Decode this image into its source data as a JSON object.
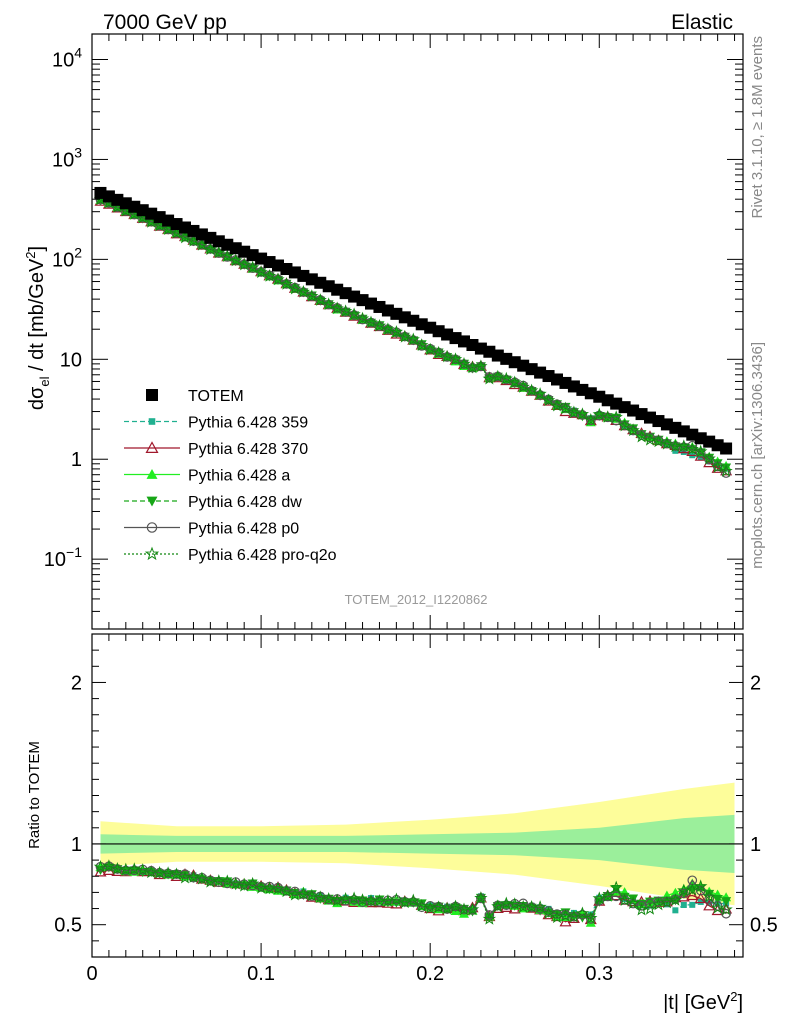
{
  "header": {
    "left": "7000 GeV pp",
    "right": "Elastic"
  },
  "side_text": {
    "top": "Rivet 3.1.10, ≥ 1.8M events",
    "bottom": "mcplots.cern.ch [arXiv:1306.3436]"
  },
  "watermark": "TOTEM_2012_I1220862",
  "axes": {
    "ylabel_main_pre": "dσ",
    "ylabel_main_sub": "el",
    "ylabel_main_mid": " / dt [mb/GeV",
    "ylabel_main_sup": "2",
    "ylabel_main_post": "]",
    "ylabel_ratio": "Ratio to TOTEM",
    "xlabel_pre": "|t| [GeV",
    "xlabel_sup": "2",
    "xlabel_post": "]"
  },
  "legend": [
    {
      "label": "TOTEM",
      "color": "#000000",
      "marker": "filled-square",
      "line": "none"
    },
    {
      "label": "Pythia 6.428 359",
      "color": "#20b090",
      "marker": "small-square",
      "line": "dashed"
    },
    {
      "label": "Pythia 6.428 370",
      "color": "#a0182c",
      "marker": "open-triangle",
      "line": "solid"
    },
    {
      "label": "Pythia 6.428 a",
      "color": "#22ee22",
      "marker": "filled-triangle",
      "line": "solid"
    },
    {
      "label": "Pythia 6.428 dw",
      "color": "#17a617",
      "marker": "filled-triangle-down",
      "line": "dashed"
    },
    {
      "label": "Pythia 6.428 p0",
      "color": "#555555",
      "marker": "open-circle",
      "line": "solid"
    },
    {
      "label": "Pythia 6.428 pro-q2o",
      "color": "#118811",
      "marker": "open-star",
      "line": "dotted"
    }
  ],
  "chart_data": {
    "type": "scatter",
    "x_range": [
      0,
      0.385
    ],
    "main": {
      "y_scale": "log",
      "y_range": [
        0.02,
        18000
      ],
      "y_ticks": [
        {
          "value": 0.1,
          "base": "10",
          "exp": "−1"
        },
        {
          "value": 1,
          "label": "1"
        },
        {
          "value": 10,
          "label": "10"
        },
        {
          "value": 100,
          "base": "10",
          "exp": "2"
        },
        {
          "value": 1000,
          "base": "10",
          "exp": "3"
        },
        {
          "value": 10000,
          "base": "10",
          "exp": "4"
        }
      ]
    },
    "ratio": {
      "y_range": [
        0.3,
        2.3
      ],
      "y_ticks": [
        0.5,
        1,
        2
      ],
      "y_tick_labels": [
        "0.5",
        "1",
        "2"
      ]
    },
    "x_ticks": [
      0,
      0.1,
      0.2,
      0.3
    ],
    "x_tick_labels": [
      "0",
      "0.1",
      "0.2",
      "0.3"
    ],
    "data": {
      "name": "TOTEM",
      "x": [
        0.005,
        0.01,
        0.015,
        0.02,
        0.025,
        0.03,
        0.035,
        0.04,
        0.045,
        0.05,
        0.055,
        0.06,
        0.065,
        0.07,
        0.075,
        0.08,
        0.085,
        0.09,
        0.095,
        0.1,
        0.105,
        0.11,
        0.115,
        0.12,
        0.125,
        0.13,
        0.135,
        0.14,
        0.145,
        0.15,
        0.155,
        0.16,
        0.165,
        0.17,
        0.175,
        0.18,
        0.185,
        0.19,
        0.195,
        0.2,
        0.205,
        0.21,
        0.215,
        0.22,
        0.225,
        0.23,
        0.235,
        0.24,
        0.245,
        0.25,
        0.255,
        0.26,
        0.265,
        0.27,
        0.275,
        0.28,
        0.285,
        0.29,
        0.295,
        0.3,
        0.305,
        0.31,
        0.315,
        0.32,
        0.325,
        0.33,
        0.335,
        0.34,
        0.345,
        0.35,
        0.355,
        0.36,
        0.365,
        0.37,
        0.375
      ],
      "y": [
        462.2,
        426.8,
        394.1,
        364.0,
        336.1,
        310.4,
        286.6,
        264.7,
        244.4,
        225.7,
        208.4,
        192.5,
        177.7,
        164.1,
        151.6,
        140.0,
        129.2,
        119.3,
        110.2,
        101.8,
        94.0,
        86.8,
        80.1,
        74.0,
        68.3,
        63.1,
        58.3,
        53.8,
        49.7,
        45.9,
        42.4,
        39.1,
        36.1,
        33.4,
        30.8,
        28.5,
        26.3,
        24.3,
        22.4,
        20.7,
        19.1,
        17.7,
        16.3,
        15.1,
        13.9,
        12.8,
        11.9,
        10.9,
        10.1,
        9.35,
        8.63,
        7.97,
        7.36,
        6.8,
        6.28,
        5.8,
        5.35,
        4.94,
        4.57,
        4.22,
        3.89,
        3.6,
        3.32,
        3.07,
        2.83,
        2.61,
        2.41,
        2.23,
        2.06,
        1.9,
        1.76,
        1.62,
        1.5,
        1.38,
        1.28
      ]
    },
    "ratio_bands": {
      "x": [
        0.005,
        0.05,
        0.1,
        0.15,
        0.2,
        0.25,
        0.3,
        0.35,
        0.38
      ],
      "inner_up": [
        1.06,
        1.05,
        1.05,
        1.05,
        1.06,
        1.07,
        1.1,
        1.16,
        1.18
      ],
      "inner_down": [
        0.94,
        0.95,
        0.95,
        0.95,
        0.94,
        0.93,
        0.9,
        0.84,
        0.82
      ],
      "outer_up": [
        1.14,
        1.11,
        1.11,
        1.12,
        1.15,
        1.19,
        1.26,
        1.34,
        1.38
      ],
      "outer_down": [
        0.86,
        0.89,
        0.89,
        0.88,
        0.85,
        0.81,
        0.74,
        0.66,
        0.62
      ],
      "inner_color": "#9bef9b",
      "outer_color": "#fdfd9a"
    },
    "mc_x": [
      0.005,
      0.01,
      0.015,
      0.02,
      0.025,
      0.03,
      0.035,
      0.04,
      0.045,
      0.05,
      0.055,
      0.06,
      0.065,
      0.07,
      0.075,
      0.08,
      0.085,
      0.09,
      0.095,
      0.1,
      0.105,
      0.11,
      0.115,
      0.12,
      0.125,
      0.13,
      0.135,
      0.14,
      0.145,
      0.15,
      0.155,
      0.16,
      0.165,
      0.17,
      0.175,
      0.18,
      0.185,
      0.19,
      0.195,
      0.2,
      0.205,
      0.21,
      0.215,
      0.22,
      0.225,
      0.23,
      0.235,
      0.24,
      0.245,
      0.25,
      0.255,
      0.26,
      0.265,
      0.27,
      0.275,
      0.28,
      0.285,
      0.29,
      0.295,
      0.3,
      0.305,
      0.31,
      0.315,
      0.32,
      0.325,
      0.33,
      0.335,
      0.34,
      0.345,
      0.35,
      0.355,
      0.36,
      0.365,
      0.37,
      0.375
    ],
    "series": [
      {
        "name": "Pythia 6.428 359",
        "ratio": [
          0.846,
          0.857,
          0.845,
          0.832,
          0.842,
          0.826,
          0.836,
          0.816,
          0.818,
          0.812,
          0.798,
          0.806,
          0.784,
          0.772,
          0.776,
          0.754,
          0.756,
          0.747,
          0.758,
          0.738,
          0.73,
          0.724,
          0.712,
          0.696,
          0.706,
          0.684,
          0.682,
          0.665,
          0.646,
          0.667,
          0.652,
          0.648,
          0.665,
          0.646,
          0.642,
          0.636,
          0.647,
          0.643,
          0.631,
          0.621,
          0.613,
          0.612,
          0.6,
          0.587,
          0.594,
          0.676,
          0.551,
          0.61,
          0.618,
          0.625,
          0.605,
          0.617,
          0.608,
          0.598,
          0.571,
          0.567,
          0.573,
          0.557,
          0.563,
          0.667,
          0.665,
          0.705,
          0.659,
          0.645,
          0.62,
          0.618,
          0.649,
          0.626,
          0.589,
          0.622,
          0.623,
          0.641,
          0.635,
          0.632,
          0.631
        ]
      },
      {
        "name": "Pythia 6.428 370",
        "ratio": [
          0.827,
          0.836,
          0.83,
          0.828,
          0.837,
          0.829,
          0.83,
          0.811,
          0.815,
          0.799,
          0.812,
          0.806,
          0.783,
          0.775,
          0.763,
          0.762,
          0.753,
          0.752,
          0.744,
          0.739,
          0.729,
          0.731,
          0.714,
          0.694,
          0.69,
          0.67,
          0.666,
          0.655,
          0.652,
          0.647,
          0.638,
          0.649,
          0.637,
          0.637,
          0.633,
          0.629,
          0.645,
          0.641,
          0.62,
          0.6,
          0.586,
          0.604,
          0.601,
          0.587,
          0.605,
          0.666,
          0.551,
          0.601,
          0.607,
          0.598,
          0.609,
          0.603,
          0.592,
          0.562,
          0.551,
          0.518,
          0.539,
          0.566,
          0.532,
          0.646,
          0.68,
          0.68,
          0.652,
          0.643,
          0.641,
          0.646,
          0.639,
          0.642,
          0.667,
          0.672,
          0.681,
          0.662,
          0.617,
          0.588,
          0.598
        ]
      },
      {
        "name": "Pythia 6.428 a",
        "ratio": [
          0.858,
          0.86,
          0.85,
          0.831,
          0.828,
          0.842,
          0.834,
          0.823,
          0.81,
          0.814,
          0.799,
          0.799,
          0.796,
          0.774,
          0.774,
          0.754,
          0.754,
          0.758,
          0.734,
          0.73,
          0.719,
          0.71,
          0.706,
          0.689,
          0.705,
          0.682,
          0.665,
          0.649,
          0.634,
          0.656,
          0.642,
          0.634,
          0.655,
          0.648,
          0.642,
          0.644,
          0.645,
          0.636,
          0.615,
          0.61,
          0.596,
          0.605,
          0.585,
          0.568,
          0.587,
          0.665,
          0.551,
          0.625,
          0.626,
          0.617,
          0.601,
          0.609,
          0.591,
          0.583,
          0.551,
          0.547,
          0.562,
          0.57,
          0.512,
          0.658,
          0.672,
          0.705,
          0.702,
          0.655,
          0.629,
          0.636,
          0.641,
          0.681,
          0.698,
          0.721,
          0.755,
          0.732,
          0.705,
          0.687,
          0.67
        ]
      },
      {
        "name": "Pythia 6.428 dw",
        "ratio": [
          0.839,
          0.855,
          0.844,
          0.833,
          0.836,
          0.826,
          0.826,
          0.817,
          0.811,
          0.814,
          0.807,
          0.789,
          0.782,
          0.77,
          0.77,
          0.768,
          0.744,
          0.741,
          0.755,
          0.731,
          0.719,
          0.717,
          0.712,
          0.697,
          0.684,
          0.689,
          0.66,
          0.661,
          0.647,
          0.652,
          0.648,
          0.65,
          0.642,
          0.656,
          0.638,
          0.637,
          0.638,
          0.636,
          0.632,
          0.604,
          0.612,
          0.596,
          0.608,
          0.598,
          0.582,
          0.666,
          0.545,
          0.615,
          0.62,
          0.617,
          0.616,
          0.605,
          0.587,
          0.575,
          0.566,
          0.576,
          0.554,
          0.544,
          0.545,
          0.642,
          0.678,
          0.721,
          0.672,
          0.662,
          0.63,
          0.643,
          0.649,
          0.649,
          0.652,
          0.693,
          0.718,
          0.726,
          0.691,
          0.659,
          0.646
        ]
      },
      {
        "name": "Pythia 6.428 p0",
        "ratio": [
          0.859,
          0.862,
          0.845,
          0.836,
          0.837,
          0.842,
          0.834,
          0.822,
          0.818,
          0.813,
          0.813,
          0.791,
          0.791,
          0.775,
          0.763,
          0.756,
          0.764,
          0.751,
          0.743,
          0.736,
          0.736,
          0.73,
          0.71,
          0.706,
          0.689,
          0.678,
          0.675,
          0.656,
          0.659,
          0.649,
          0.654,
          0.639,
          0.646,
          0.642,
          0.651,
          0.655,
          0.642,
          0.641,
          0.608,
          0.617,
          0.612,
          0.597,
          0.613,
          0.593,
          0.592,
          0.663,
          0.56,
          0.62,
          0.621,
          0.63,
          0.632,
          0.609,
          0.597,
          0.585,
          0.566,
          0.563,
          0.55,
          0.562,
          0.536,
          0.649,
          0.675,
          0.676,
          0.654,
          0.631,
          0.617,
          0.632,
          0.643,
          0.643,
          0.658,
          0.694,
          0.775,
          0.711,
          0.659,
          0.616,
          0.568
        ]
      },
      {
        "name": "Pythia 6.428 pro-q2o",
        "ratio": [
          0.858,
          0.862,
          0.845,
          0.841,
          0.843,
          0.838,
          0.823,
          0.821,
          0.818,
          0.811,
          0.79,
          0.794,
          0.784,
          0.765,
          0.77,
          0.768,
          0.753,
          0.74,
          0.753,
          0.727,
          0.724,
          0.722,
          0.705,
          0.685,
          0.69,
          0.679,
          0.669,
          0.659,
          0.649,
          0.659,
          0.663,
          0.652,
          0.646,
          0.647,
          0.646,
          0.656,
          0.637,
          0.65,
          0.616,
          0.602,
          0.608,
          0.599,
          0.613,
          0.594,
          0.594,
          0.664,
          0.535,
          0.613,
          0.631,
          0.627,
          0.61,
          0.61,
          0.609,
          0.57,
          0.545,
          0.554,
          0.548,
          0.57,
          0.54,
          0.663,
          0.677,
          0.73,
          0.651,
          0.632,
          0.592,
          0.597,
          0.624,
          0.637,
          0.652,
          0.711,
          0.716,
          0.737,
          0.674,
          0.604,
          0.593
        ]
      }
    ]
  }
}
